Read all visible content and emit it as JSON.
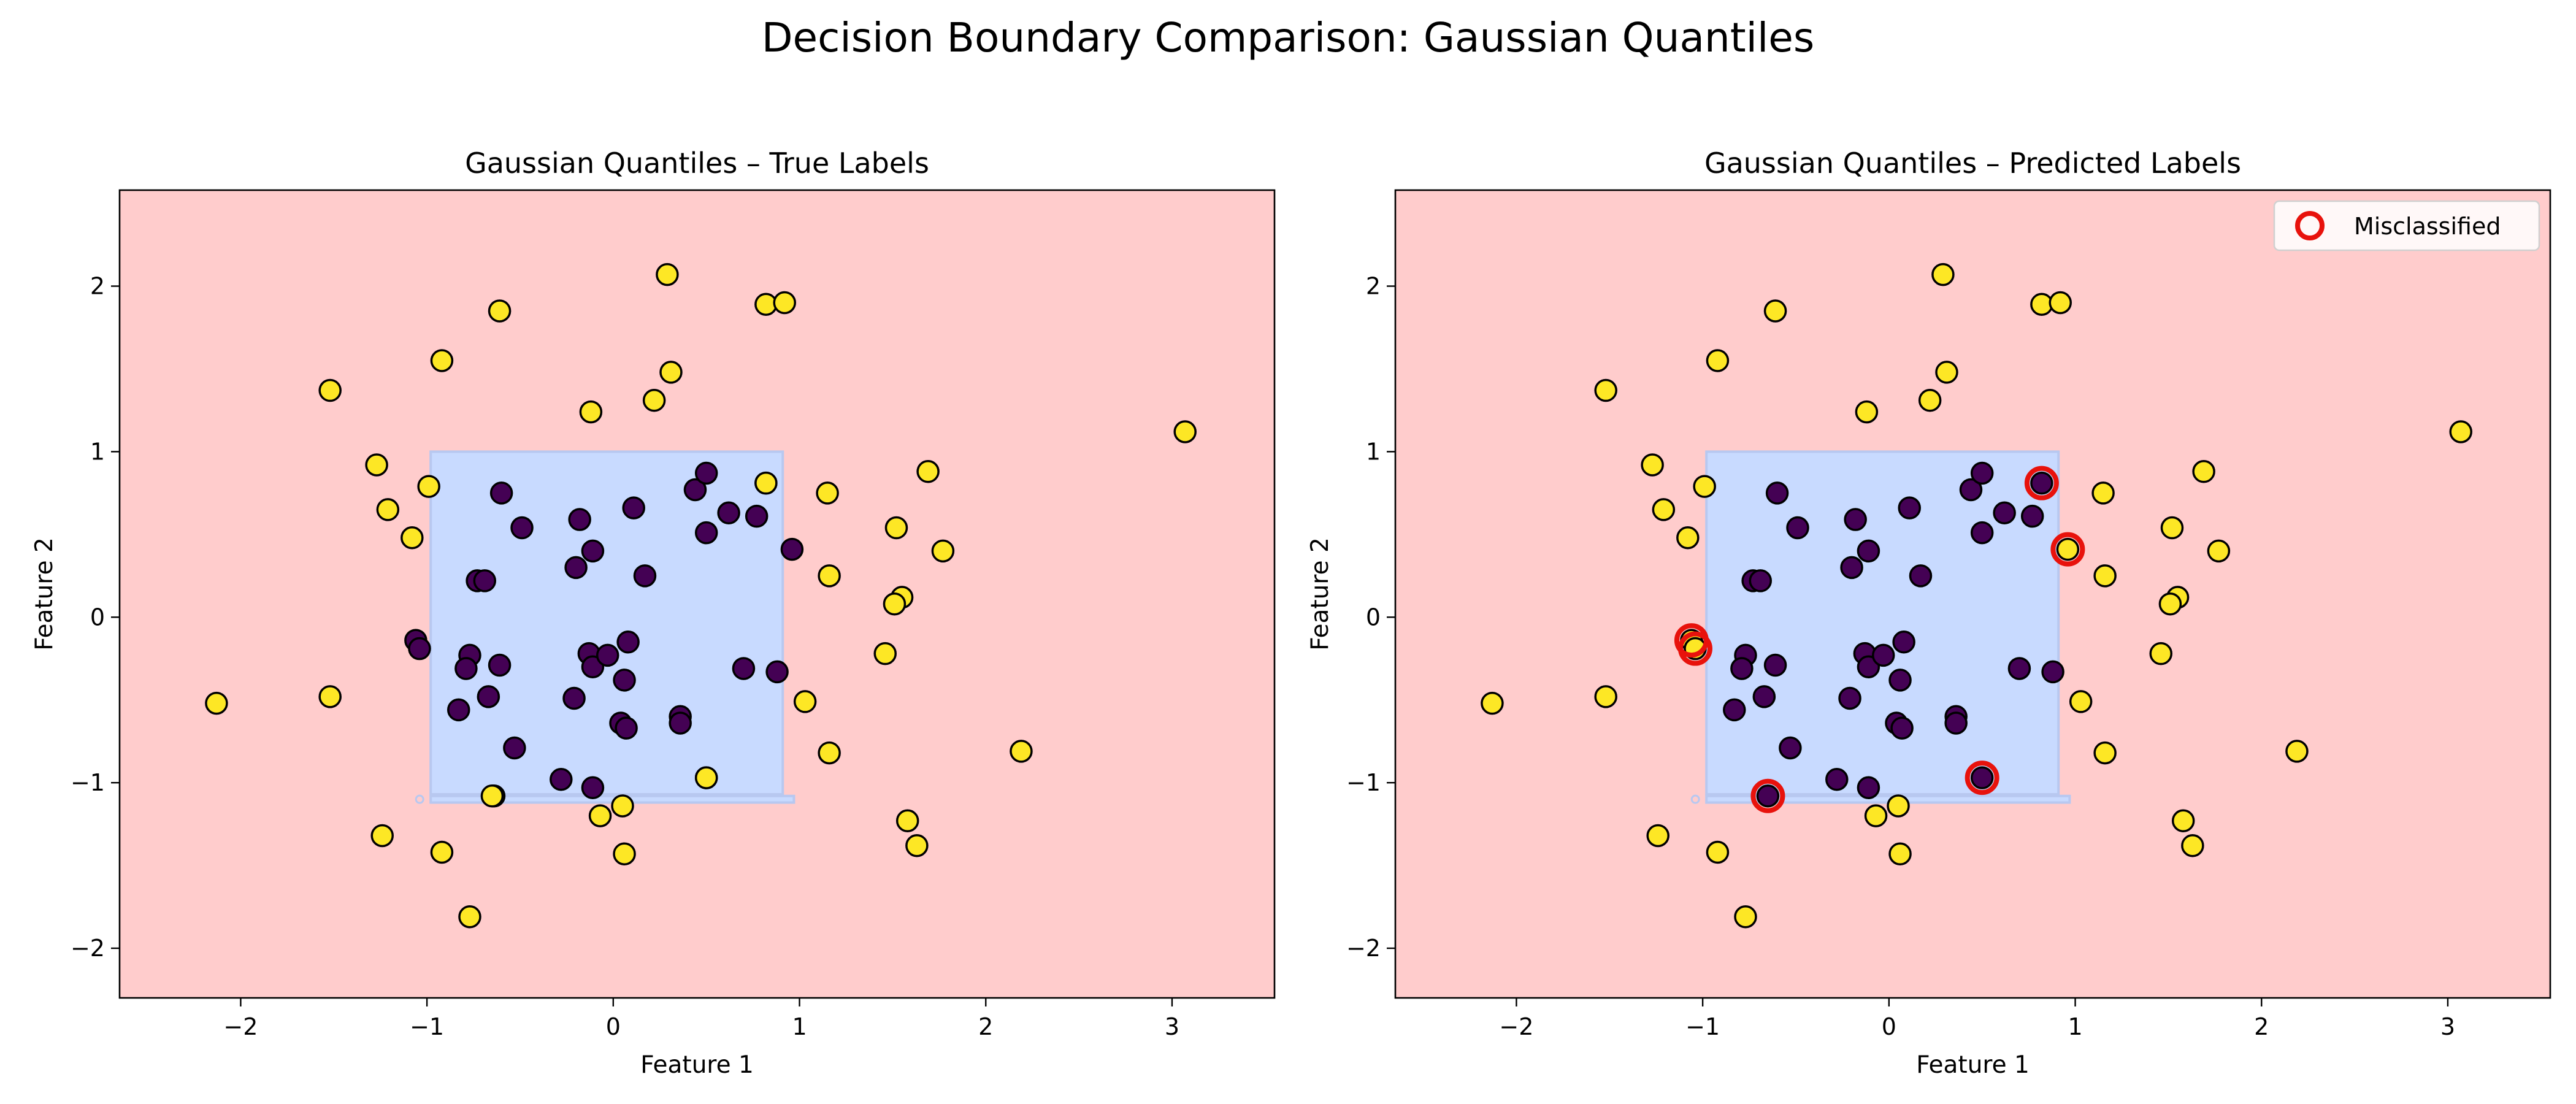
{
  "figure": {
    "suptitle": "Decision Boundary Comparison: Gaussian Quantiles"
  },
  "chart_data": [
    {
      "type": "scatter",
      "title": "Gaussian Quantiles – True Labels",
      "xlabel": "Feature 1",
      "ylabel": "Feature 2",
      "xlim": [
        -2.65,
        3.55
      ],
      "ylim": [
        -2.3,
        2.58
      ],
      "xticks": [
        -2,
        -1,
        0,
        1,
        2,
        3
      ],
      "yticks": [
        -2,
        -1,
        0,
        1,
        2
      ],
      "xtick_labels": [
        "−2",
        "−1",
        "0",
        "1",
        "2",
        "3"
      ],
      "ytick_labels": [
        "−2",
        "−1",
        "0",
        "1",
        "2"
      ],
      "grid": false,
      "legend": null,
      "regions": {
        "outer_class": "outer",
        "inner_class": "inner",
        "inner_box": {
          "x": [
            -0.98,
            0.91
          ],
          "y": [
            -1.07,
            1.0
          ]
        },
        "inner_strip": {
          "x": [
            -0.98,
            0.97
          ],
          "y": [
            -1.12,
            -1.08
          ]
        }
      },
      "series": [
        {
          "class": "inner",
          "points": [
            [
              -0.6,
              0.75
            ],
            [
              -0.49,
              0.54
            ],
            [
              0.11,
              0.66
            ],
            [
              0.44,
              0.77
            ],
            [
              0.5,
              0.87
            ],
            [
              0.62,
              0.63
            ],
            [
              0.77,
              0.61
            ],
            [
              -0.73,
              0.22
            ],
            [
              -0.69,
              0.22
            ],
            [
              -0.18,
              0.59
            ],
            [
              -0.11,
              0.4
            ],
            [
              -0.2,
              0.3
            ],
            [
              0.17,
              0.25
            ],
            [
              0.5,
              0.51
            ],
            [
              0.96,
              0.41
            ],
            [
              -1.06,
              -0.14
            ],
            [
              -1.04,
              -0.19
            ],
            [
              -0.77,
              -0.23
            ],
            [
              -0.79,
              -0.31
            ],
            [
              -0.61,
              -0.29
            ],
            [
              -0.13,
              -0.22
            ],
            [
              -0.11,
              -0.3
            ],
            [
              -0.03,
              -0.23
            ],
            [
              0.08,
              -0.15
            ],
            [
              0.06,
              -0.38
            ],
            [
              0.7,
              -0.31
            ],
            [
              0.88,
              -0.33
            ],
            [
              -0.83,
              -0.56
            ],
            [
              -0.67,
              -0.48
            ],
            [
              -0.53,
              -0.79
            ],
            [
              -0.21,
              -0.49
            ],
            [
              0.04,
              -0.64
            ],
            [
              0.07,
              -0.67
            ],
            [
              0.36,
              -0.6
            ],
            [
              0.36,
              -0.64
            ],
            [
              -0.28,
              -0.98
            ],
            [
              -0.11,
              -1.03
            ],
            [
              0.5,
              -0.97
            ],
            [
              -0.64,
              -1.08
            ],
            [
              0.82,
              0.81
            ]
          ]
        },
        {
          "class": "outer",
          "points": [
            [
              0.29,
              2.07
            ],
            [
              -0.61,
              1.85
            ],
            [
              0.82,
              1.89
            ],
            [
              0.92,
              1.9
            ],
            [
              -0.92,
              1.55
            ],
            [
              -1.52,
              1.37
            ],
            [
              0.31,
              1.48
            ],
            [
              -0.12,
              1.24
            ],
            [
              0.22,
              1.31
            ],
            [
              3.07,
              1.12
            ],
            [
              -1.27,
              0.92
            ],
            [
              -1.21,
              0.65
            ],
            [
              -0.99,
              0.79
            ],
            [
              -1.08,
              0.48
            ],
            [
              0.82,
              0.81
            ],
            [
              1.15,
              0.75
            ],
            [
              1.69,
              0.88
            ],
            [
              1.52,
              0.54
            ],
            [
              1.77,
              0.4
            ],
            [
              1.16,
              0.25
            ],
            [
              1.55,
              0.12
            ],
            [
              1.51,
              0.08
            ],
            [
              -2.13,
              -0.52
            ],
            [
              -1.52,
              -0.48
            ],
            [
              1.46,
              -0.22
            ],
            [
              1.03,
              -0.51
            ],
            [
              1.16,
              -0.82
            ],
            [
              2.19,
              -0.81
            ],
            [
              0.5,
              -0.97
            ],
            [
              -0.65,
              -1.08
            ],
            [
              0.05,
              -1.14
            ],
            [
              -0.07,
              -1.2
            ],
            [
              -1.24,
              -1.32
            ],
            [
              -0.92,
              -1.42
            ],
            [
              0.06,
              -1.43
            ],
            [
              1.58,
              -1.23
            ],
            [
              1.63,
              -1.38
            ],
            [
              -0.77,
              -1.81
            ]
          ]
        }
      ]
    },
    {
      "type": "scatter",
      "title": "Gaussian Quantiles – Predicted Labels",
      "xlabel": "Feature 1",
      "ylabel": "Feature 2",
      "xlim": [
        -2.65,
        3.55
      ],
      "ylim": [
        -2.3,
        2.58
      ],
      "xticks": [
        -2,
        -1,
        0,
        1,
        2,
        3
      ],
      "yticks": [
        -2,
        -1,
        0,
        1,
        2
      ],
      "xtick_labels": [
        "−2",
        "−1",
        "0",
        "1",
        "2",
        "3"
      ],
      "ytick_labels": [
        "−2",
        "−1",
        "0",
        "1",
        "2"
      ],
      "grid": false,
      "legend": {
        "position": "top-right",
        "entries": [
          "Misclassified"
        ]
      },
      "regions": {
        "outer_class": "outer",
        "inner_class": "inner",
        "inner_box": {
          "x": [
            -0.98,
            0.91
          ],
          "y": [
            -1.07,
            1.0
          ]
        },
        "inner_strip": {
          "x": [
            -0.98,
            0.97
          ],
          "y": [
            -1.12,
            -1.08
          ]
        }
      },
      "series": [
        {
          "class": "inner",
          "points": [
            [
              -0.6,
              0.75
            ],
            [
              -0.49,
              0.54
            ],
            [
              0.11,
              0.66
            ],
            [
              0.44,
              0.77
            ],
            [
              0.5,
              0.87
            ],
            [
              0.62,
              0.63
            ],
            [
              0.77,
              0.61
            ],
            [
              -0.73,
              0.22
            ],
            [
              -0.69,
              0.22
            ],
            [
              -0.18,
              0.59
            ],
            [
              -0.11,
              0.4
            ],
            [
              -0.2,
              0.3
            ],
            [
              0.17,
              0.25
            ],
            [
              0.5,
              0.51
            ],
            [
              0.88,
              -0.33
            ],
            [
              -0.77,
              -0.23
            ],
            [
              -0.79,
              -0.31
            ],
            [
              -0.61,
              -0.29
            ],
            [
              -0.13,
              -0.22
            ],
            [
              -0.11,
              -0.3
            ],
            [
              -0.03,
              -0.23
            ],
            [
              0.08,
              -0.15
            ],
            [
              0.06,
              -0.38
            ],
            [
              0.7,
              -0.31
            ],
            [
              -0.83,
              -0.56
            ],
            [
              -0.67,
              -0.48
            ],
            [
              -0.53,
              -0.79
            ],
            [
              -0.21,
              -0.49
            ],
            [
              0.04,
              -0.64
            ],
            [
              0.07,
              -0.67
            ],
            [
              0.36,
              -0.6
            ],
            [
              0.36,
              -0.64
            ],
            [
              -0.28,
              -0.98
            ],
            [
              -0.11,
              -1.03
            ],
            [
              0.82,
              0.81
            ],
            [
              0.5,
              -0.97
            ],
            [
              -0.65,
              -1.08
            ]
          ]
        },
        {
          "class": "outer",
          "points": [
            [
              0.29,
              2.07
            ],
            [
              -0.61,
              1.85
            ],
            [
              0.82,
              1.89
            ],
            [
              0.92,
              1.9
            ],
            [
              -0.92,
              1.55
            ],
            [
              -1.52,
              1.37
            ],
            [
              0.31,
              1.48
            ],
            [
              -0.12,
              1.24
            ],
            [
              0.22,
              1.31
            ],
            [
              3.07,
              1.12
            ],
            [
              -1.27,
              0.92
            ],
            [
              -1.21,
              0.65
            ],
            [
              -0.99,
              0.79
            ],
            [
              -1.08,
              0.48
            ],
            [
              1.15,
              0.75
            ],
            [
              1.69,
              0.88
            ],
            [
              1.52,
              0.54
            ],
            [
              1.77,
              0.4
            ],
            [
              1.16,
              0.25
            ],
            [
              1.55,
              0.12
            ],
            [
              1.51,
              0.08
            ],
            [
              -2.13,
              -0.52
            ],
            [
              -1.52,
              -0.48
            ],
            [
              1.46,
              -0.22
            ],
            [
              1.03,
              -0.51
            ],
            [
              1.16,
              -0.82
            ],
            [
              2.19,
              -0.81
            ],
            [
              0.05,
              -1.14
            ],
            [
              -0.07,
              -1.2
            ],
            [
              -1.24,
              -1.32
            ],
            [
              -0.92,
              -1.42
            ],
            [
              0.06,
              -1.43
            ],
            [
              1.58,
              -1.23
            ],
            [
              1.63,
              -1.38
            ],
            [
              -0.77,
              -1.81
            ],
            [
              0.96,
              0.41
            ],
            [
              -1.06,
              -0.14
            ],
            [
              -1.04,
              -0.19
            ]
          ]
        }
      ],
      "misclassified": [
        [
          0.82,
          0.81
        ],
        [
          0.96,
          0.41
        ],
        [
          -1.06,
          -0.14
        ],
        [
          -1.04,
          -0.19
        ],
        [
          0.5,
          -0.97
        ],
        [
          -0.65,
          -1.08
        ]
      ]
    }
  ],
  "colors": {
    "outer_region": "#ffcccc",
    "inner_region": "#c8daff",
    "strip_outline": "#b8c8f0",
    "outer_point": "#fde725",
    "inner_point": "#440154",
    "marker_edge": "#000000",
    "misclassified_ring": "#e8120c",
    "axis": "#000000",
    "legend_border": "#d0d0d0"
  }
}
